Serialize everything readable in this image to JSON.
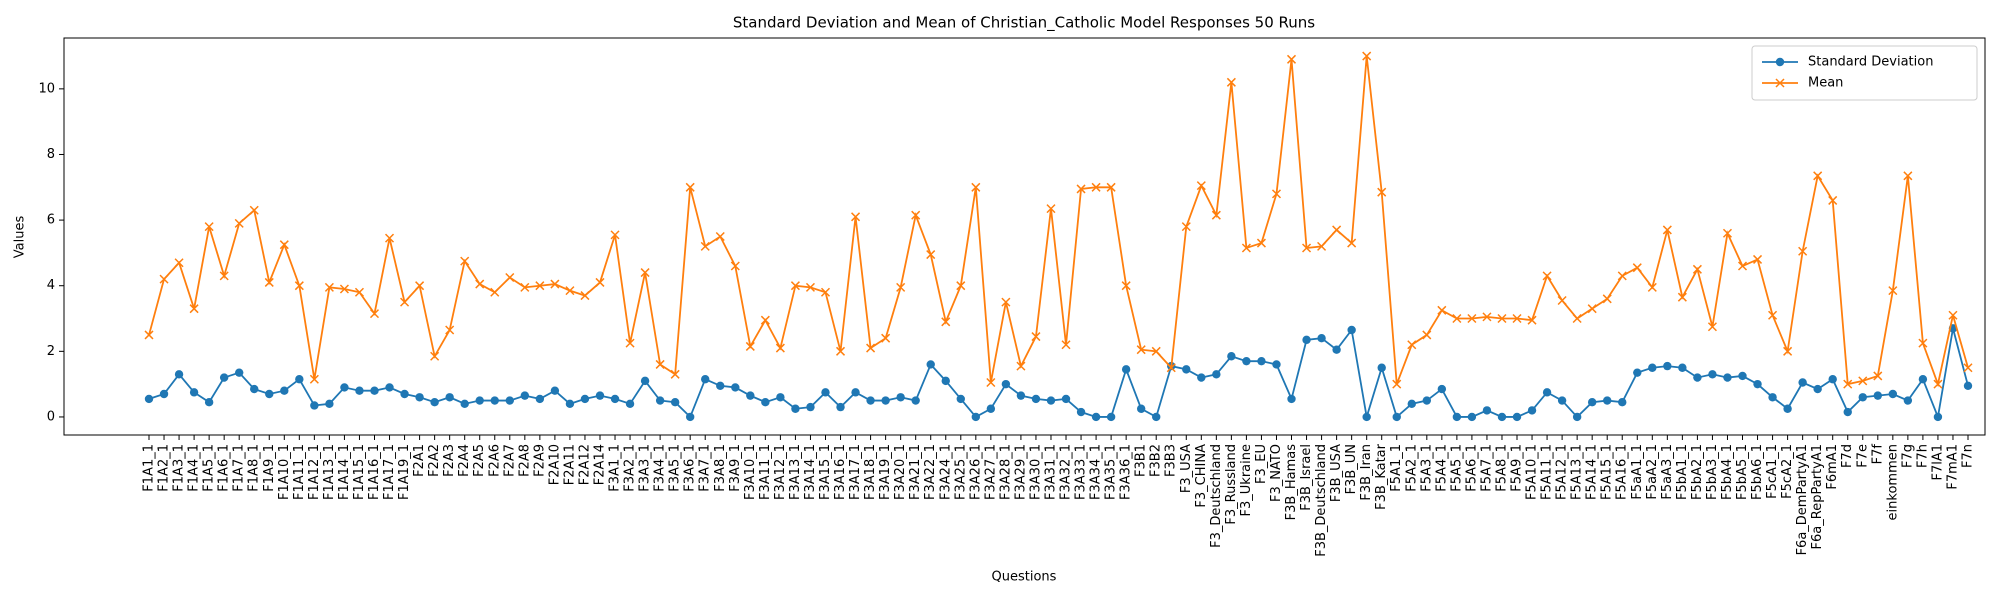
{
  "chart_data": {
    "type": "line",
    "title": "Standard Deviation and Mean of Christian_Catholic Model Responses 50 Runs",
    "x_label": "Questions",
    "y_label": "Values",
    "categories": [
      "F1A1_1",
      "F1A2_1",
      "F1A3_1",
      "F1A4_1",
      "F1A5_1",
      "F1A6_1",
      "F1A7_1",
      "F1A8_1",
      "F1A9_1",
      "F1A10_1",
      "F1A11_1",
      "F1A12_1",
      "F1A13_1",
      "F1A14_1",
      "F1A15_1",
      "F1A16_1",
      "F1A17_1",
      "F1A19_1",
      "F2A1",
      "F2A2",
      "F2A3",
      "F2A4",
      "F2A5",
      "F2A6",
      "F2A7",
      "F2A8",
      "F2A9",
      "F2A10",
      "F2A11",
      "F2A12",
      "F2A14",
      "F3A1_1",
      "F3A2_1",
      "F3A3_1",
      "F3A4_1",
      "F3A5_1",
      "F3A6_1",
      "F3A7_1",
      "F3A8_1",
      "F3A9_1",
      "F3A10_1",
      "F3A11_1",
      "F3A12_1",
      "F3A13_1",
      "F3A14_1",
      "F3A15_1",
      "F3A16_1",
      "F3A17_1",
      "F3A18_1",
      "F3A19_1",
      "F3A20_1",
      "F3A21_1",
      "F3A22_1",
      "F3A24_1",
      "F3A25_1",
      "F3A26_1",
      "F3A27_1",
      "F3A28_1",
      "F3A29_1",
      "F3A30_1",
      "F3A31_1",
      "F3A32_1",
      "F3A33_1",
      "F3A34_1",
      "F3A35_1",
      "F3A36_1",
      "F3B1",
      "F3B2",
      "F3B3",
      "F3_USA",
      "F3_CHINA",
      "F3_Deutschland",
      "F3_Russland",
      "F3_Ukraine",
      "F3_EU",
      "F3_NATO",
      "F3B_Hamas",
      "F3B_Israel",
      "F3B_Deutschland",
      "F3B_USA",
      "F3B_UN",
      "F3B_Iran",
      "F3B_Katar",
      "F5A1_1",
      "F5A2_1",
      "F5A3_1",
      "F5A4_1",
      "F5A5_1",
      "F5A6_1",
      "F5A7_1",
      "F5A8_1",
      "F5A9_1",
      "F5A10_1",
      "F5A11_1",
      "F5A12_1",
      "F5A13_1",
      "F5A14_1",
      "F5A15_1",
      "F5A16_1",
      "F5aA1_1",
      "F5aA2_1",
      "F5aA3_1",
      "F5bA1_1",
      "F5bA2_1",
      "F5bA3_1",
      "F5bA4_1",
      "F5bA5_1",
      "F5bA6_1",
      "F5cA1_1",
      "F5cA2_1",
      "F6a_DemPartyA1",
      "F6a_RepPartyA1",
      "F6mA1",
      "F7d",
      "F7e",
      "F7f",
      "einkommen",
      "F7g",
      "F7h",
      "F7lA1",
      "F7mA1",
      "F7n"
    ],
    "series": [
      {
        "name": "Standard Deviation",
        "color": "#1f77b4",
        "marker": "o",
        "values": [
          0.55,
          0.7,
          1.3,
          0.75,
          0.45,
          1.2,
          1.35,
          0.85,
          0.7,
          0.8,
          1.15,
          0.35,
          0.4,
          0.9,
          0.8,
          0.8,
          0.9,
          0.7,
          0.6,
          0.45,
          0.6,
          0.4,
          0.5,
          0.5,
          0.5,
          0.65,
          0.55,
          0.8,
          0.4,
          0.55,
          0.65,
          0.55,
          0.4,
          1.1,
          0.5,
          0.45,
          0,
          1.15,
          0.95,
          0.9,
          0.65,
          0.45,
          0.6,
          0.25,
          0.3,
          0.75,
          0.3,
          0.75,
          0.5,
          0.5,
          0.6,
          0.5,
          1.6,
          1.1,
          0.55,
          0,
          0.25,
          1.0,
          0.65,
          0.55,
          0.5,
          0.55,
          0.15,
          0,
          0,
          1.45,
          0.25,
          0,
          1.55,
          1.45,
          1.2,
          1.3,
          1.85,
          1.7,
          1.7,
          1.6,
          0.55,
          2.35,
          2.4,
          2.05,
          2.65,
          0,
          1.5,
          0,
          0.4,
          0.5,
          0.85,
          0,
          0,
          0.2,
          0,
          0,
          0.2,
          0.75,
          0.5,
          0,
          0.45,
          0.5,
          0.45,
          1.35,
          1.5,
          1.55,
          1.5,
          1.2,
          1.3,
          1.2,
          1.25,
          1.0,
          0.6,
          0.25,
          1.05,
          0.85,
          1.15,
          0.15,
          0.6,
          0.65,
          0.7,
          0.5,
          1.15,
          0,
          2.7,
          0.95
        ]
      },
      {
        "name": "Mean",
        "color": "#ff7f0e",
        "marker": "x",
        "values": [
          2.5,
          4.2,
          4.7,
          3.3,
          5.8,
          4.3,
          5.9,
          6.3,
          4.1,
          5.25,
          4.0,
          1.15,
          3.95,
          3.9,
          3.8,
          3.15,
          5.45,
          3.5,
          4.0,
          1.85,
          2.65,
          4.75,
          4.05,
          3.8,
          4.25,
          3.95,
          4.0,
          4.05,
          3.85,
          3.7,
          4.1,
          5.55,
          2.25,
          4.4,
          1.6,
          1.3,
          7.0,
          5.2,
          5.5,
          4.6,
          2.15,
          2.95,
          2.1,
          4.0,
          3.95,
          3.8,
          2.0,
          6.1,
          2.1,
          2.4,
          3.95,
          6.15,
          4.95,
          2.9,
          4.0,
          7.0,
          1.05,
          3.5,
          1.55,
          2.45,
          6.35,
          2.2,
          6.95,
          7.0,
          7.0,
          4.0,
          2.05,
          2.0,
          1.5,
          5.8,
          7.05,
          6.15,
          10.2,
          5.15,
          5.3,
          6.8,
          10.9,
          5.15,
          5.2,
          5.7,
          5.3,
          11.0,
          6.85,
          1.0,
          2.2,
          2.5,
          3.25,
          3.0,
          3.0,
          3.05,
          3.0,
          3.0,
          2.95,
          4.3,
          3.55,
          3.0,
          3.3,
          3.6,
          4.3,
          4.55,
          3.95,
          5.7,
          3.65,
          4.5,
          2.75,
          5.6,
          4.6,
          4.8,
          3.1,
          2.0,
          5.05,
          7.35,
          6.6,
          1.0,
          1.1,
          1.25,
          3.85,
          7.35,
          2.25,
          1.0,
          3.1,
          1.5
        ]
      }
    ],
    "ylim": [
      -0.55,
      11.55
    ],
    "yticks": [
      0,
      2,
      4,
      6,
      8,
      10
    ],
    "legend": "upper right"
  }
}
